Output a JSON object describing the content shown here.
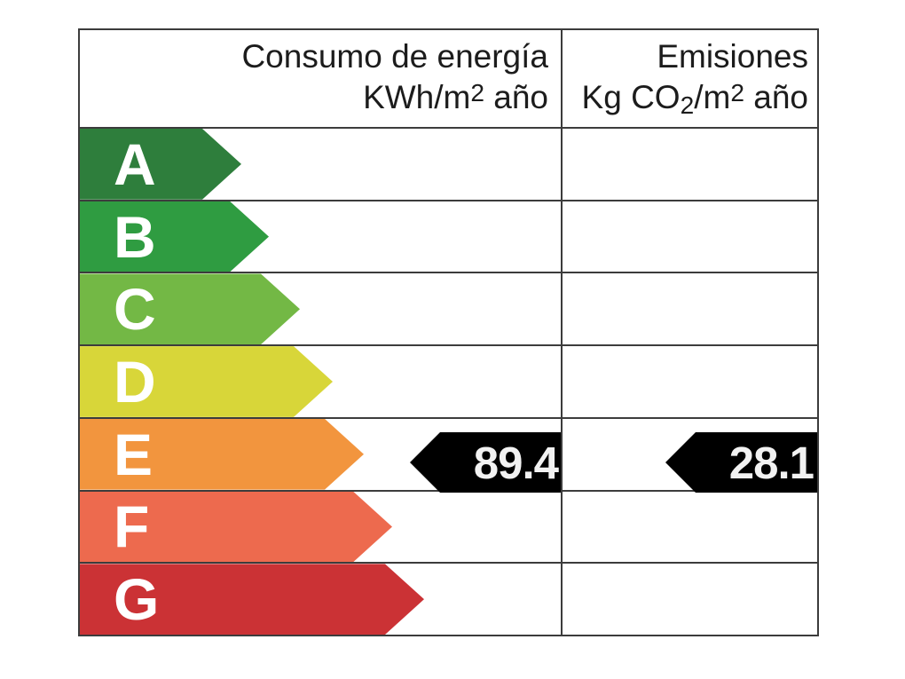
{
  "header": {
    "consumo_line1": "Consumo de energía",
    "consumo_line2_prefix": "KWh/m",
    "consumo_line2_sup": "2",
    "consumo_line2_suffix": " año",
    "emisiones_line1": "Emisiones",
    "emisiones_line2_prefix": "Kg CO",
    "emisiones_line2_sub": "2",
    "emisiones_line2_mid": "/m",
    "emisiones_line2_sup": "2",
    "emisiones_line2_suffix": " año"
  },
  "ratings": [
    {
      "letter": "A",
      "color": "#2e7e3c"
    },
    {
      "letter": "B",
      "color": "#2f9c41"
    },
    {
      "letter": "C",
      "color": "#73b845"
    },
    {
      "letter": "D",
      "color": "#d8d639"
    },
    {
      "letter": "E",
      "color": "#f2953e"
    },
    {
      "letter": "F",
      "color": "#ed6a4e"
    },
    {
      "letter": "G",
      "color": "#cb3235"
    }
  ],
  "values": {
    "consumo": "89.4",
    "emisiones": "28.1",
    "marker_color": "#000000"
  },
  "colors": {
    "border": "#3c3c3c",
    "background": "#ffffff",
    "letter": "#ffffff",
    "value_text": "#f2f2f2"
  },
  "chart_data": {
    "type": "table",
    "title": "",
    "columns": [
      "Consumo de energía KWh/m2 año",
      "Emisiones Kg CO2/m2 año"
    ],
    "rating_scale": [
      "A",
      "B",
      "C",
      "D",
      "E",
      "F",
      "G"
    ],
    "rating_colors": [
      "#2e7e3c",
      "#2f9c41",
      "#73b845",
      "#d8d639",
      "#f2953e",
      "#ed6a4e",
      "#cb3235"
    ],
    "selected_rating": "E",
    "values": [
      {
        "name": "Consumo de energía (KWh/m2 año)",
        "value": 89.4
      },
      {
        "name": "Emisiones (Kg CO2/m2 año)",
        "value": 28.1
      }
    ]
  }
}
